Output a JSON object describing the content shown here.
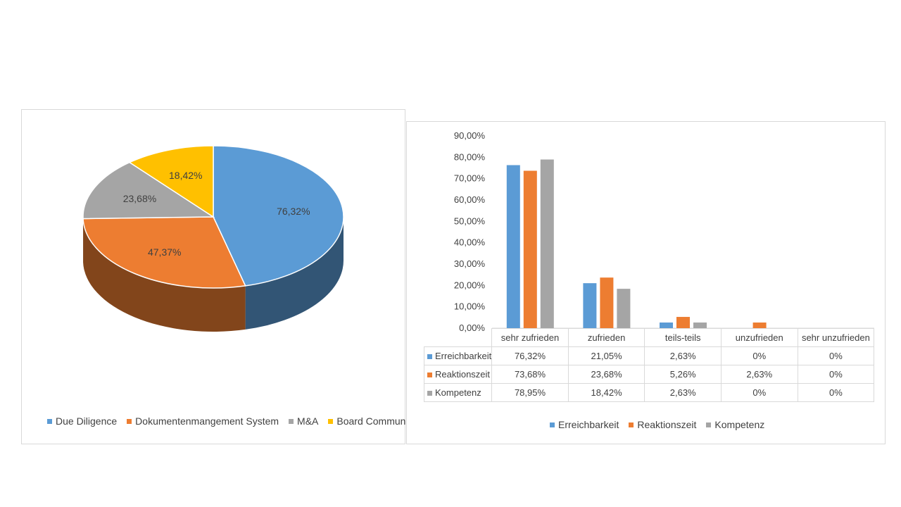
{
  "pie": {
    "chart_data": {
      "type": "pie",
      "slices": [
        {
          "name": "Due Diligence",
          "value": 76.32,
          "label": "76,32%",
          "color": "#5B9BD5"
        },
        {
          "name": "Dokumentenmangement System",
          "value": 47.37,
          "label": "47,37%",
          "color": "#ED7D31"
        },
        {
          "name": "M&A",
          "value": 23.68,
          "label": "23,68%",
          "color": "#A5A5A5"
        },
        {
          "name": "Board Communication",
          "value": 18.42,
          "label": "18,42%",
          "color": "#FFC000"
        }
      ]
    }
  },
  "bar": {
    "chart_data": {
      "type": "bar",
      "categories": [
        "sehr zufrieden",
        "zufrieden",
        "teils-teils",
        "unzufrieden",
        "sehr unzufrieden"
      ],
      "series": [
        {
          "name": "Erreichbarkeit",
          "color": "#5B9BD5",
          "values": [
            76.32,
            21.05,
            2.63,
            0,
            0
          ],
          "labels": [
            "76,32%",
            "21,05%",
            "2,63%",
            "0%",
            "0%"
          ]
        },
        {
          "name": "Reaktionszeit",
          "color": "#ED7D31",
          "values": [
            73.68,
            23.68,
            5.26,
            2.63,
            0
          ],
          "labels": [
            "73,68%",
            "23,68%",
            "5,26%",
            "2,63%",
            "0%"
          ]
        },
        {
          "name": "Kompetenz",
          "color": "#A5A5A5",
          "values": [
            78.95,
            18.42,
            2.63,
            0,
            0
          ],
          "labels": [
            "78,95%",
            "18,42%",
            "2,63%",
            "0%",
            "0%"
          ]
        }
      ],
      "ylim": [
        0,
        90
      ],
      "yticks": [
        "0,00%",
        "10,00%",
        "20,00%",
        "30,00%",
        "40,00%",
        "50,00%",
        "60,00%",
        "70,00%",
        "80,00%",
        "90,00%"
      ],
      "legend": "bottom",
      "data_table": true
    }
  }
}
